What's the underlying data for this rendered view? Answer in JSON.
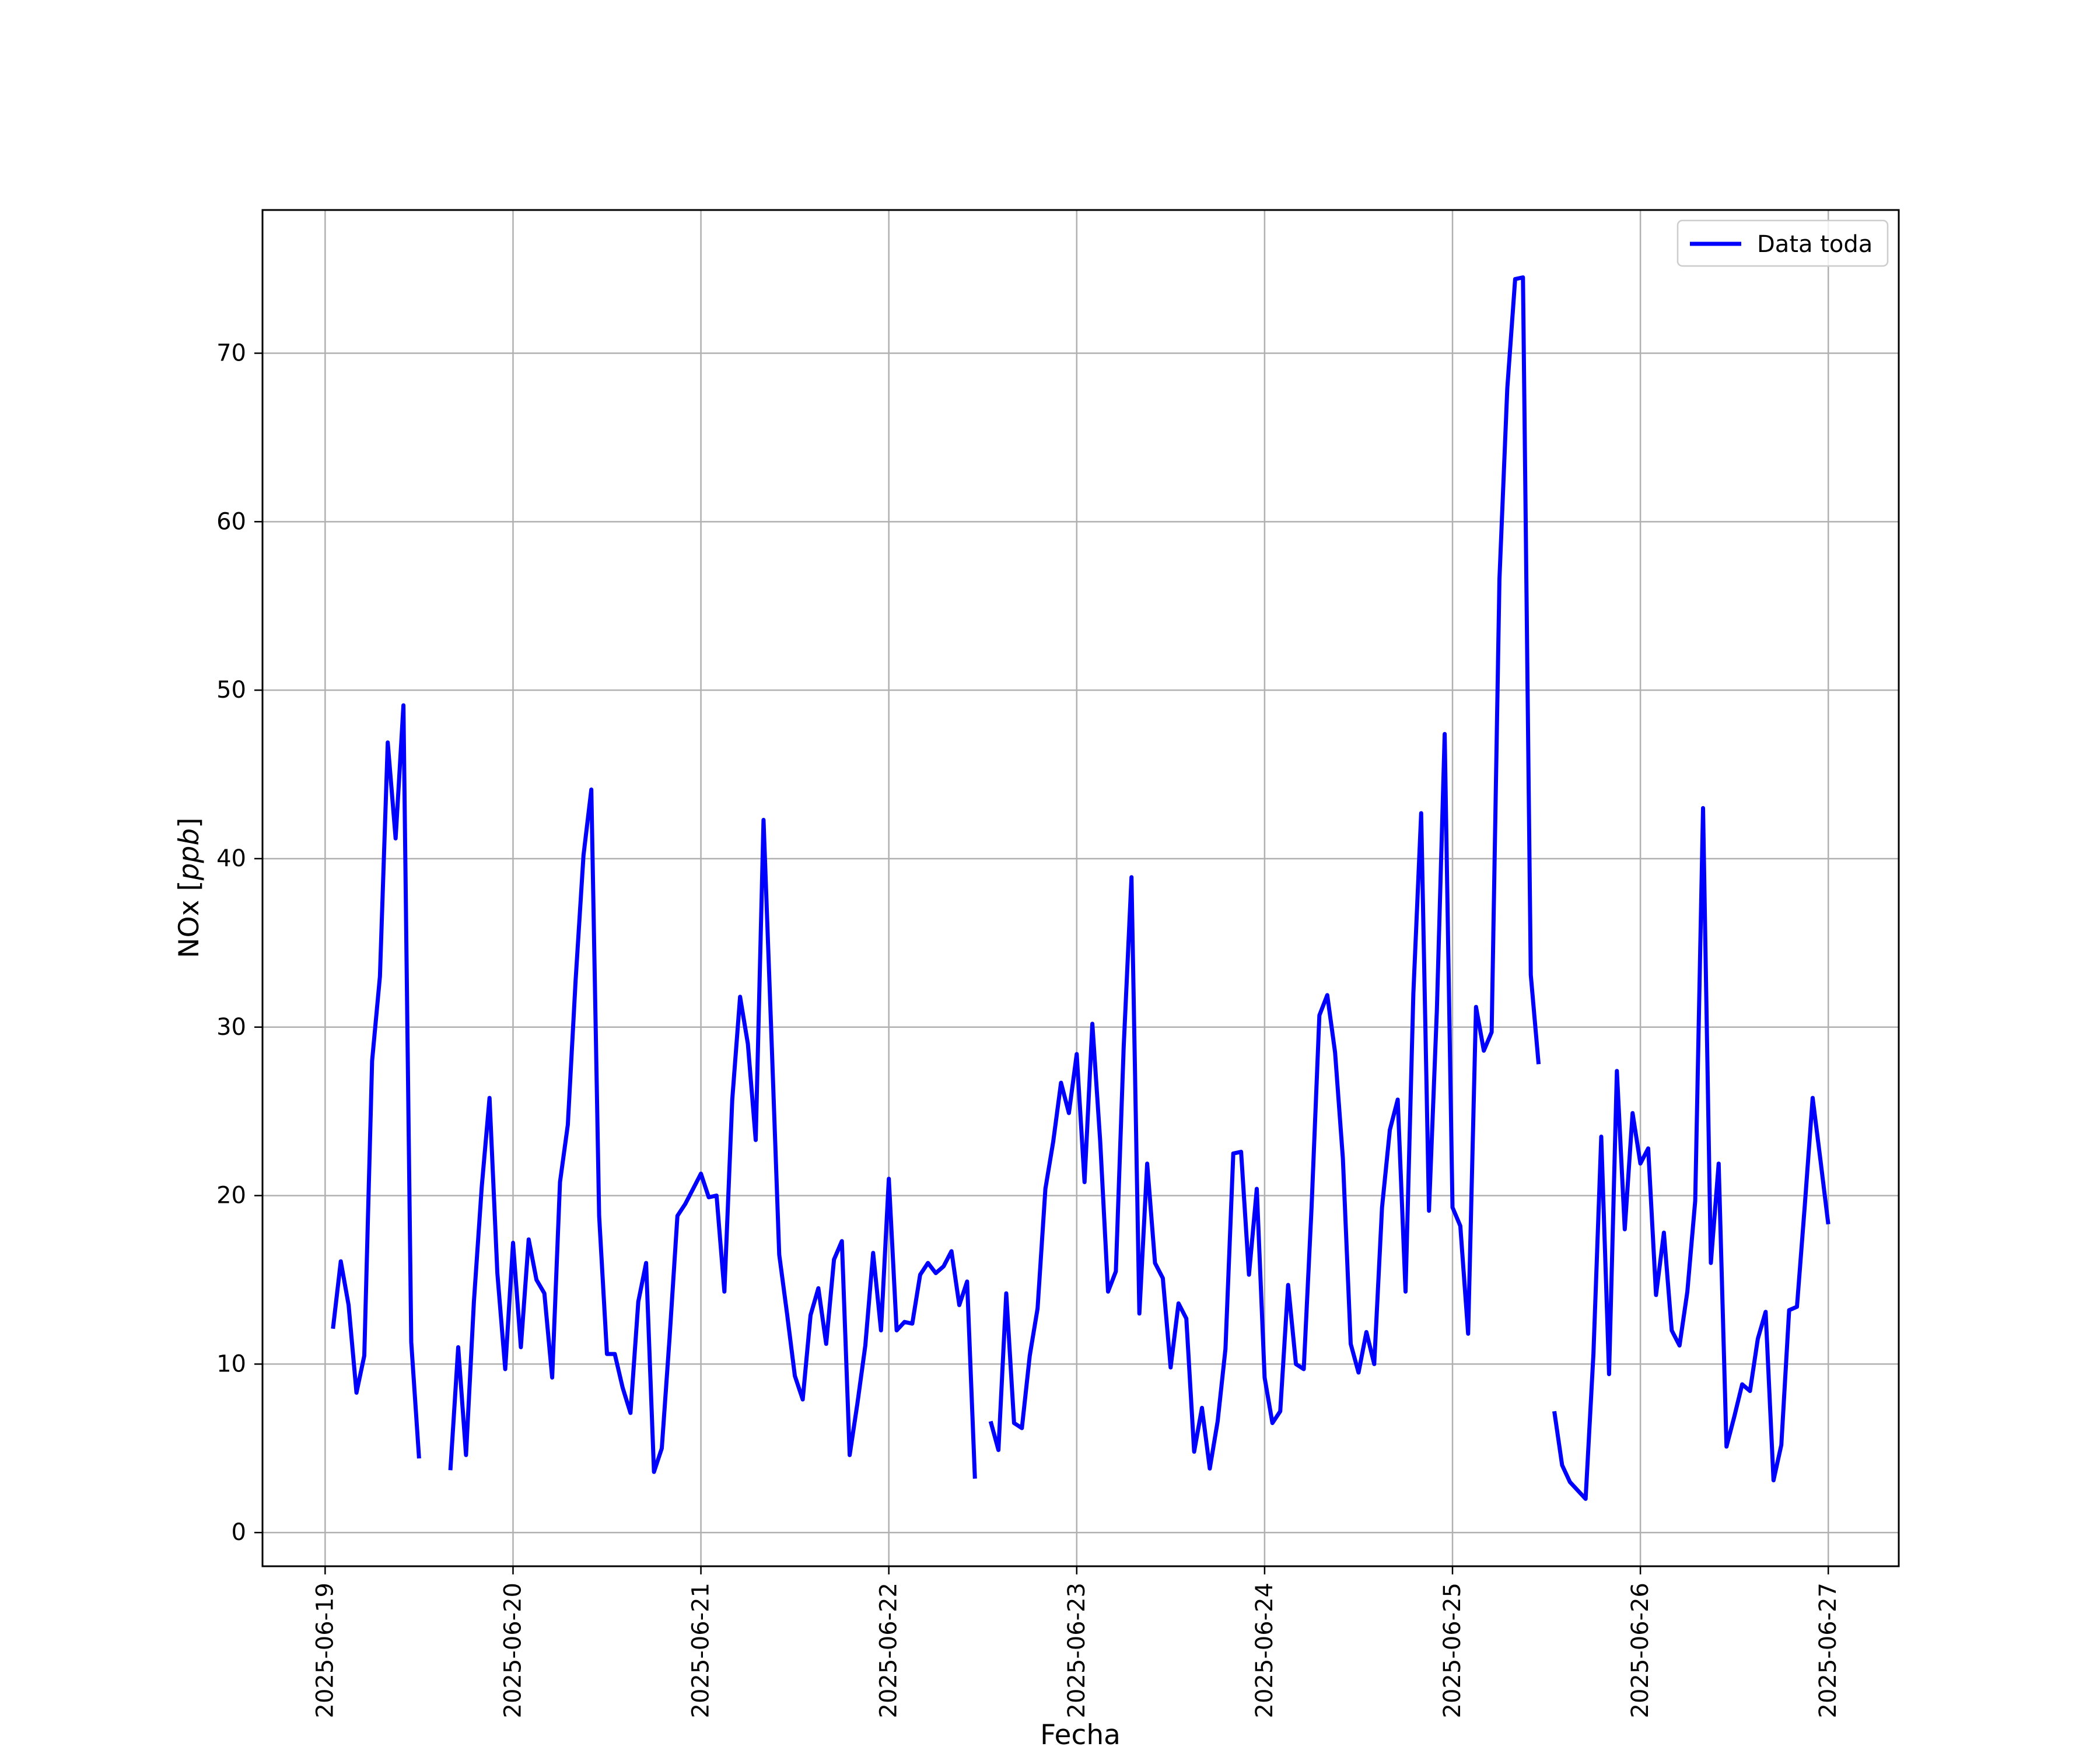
{
  "chart_data": {
    "type": "line",
    "title": "",
    "xlabel": "Fecha",
    "ylabel": "NOx [ppb]",
    "ylabel_main": "NOx ",
    "ylabel_unit": "ppb",
    "grid": true,
    "legend_placement": "top-right",
    "x_ticks": [
      "2025-06-19",
      "2025-06-20",
      "2025-06-21",
      "2025-06-22",
      "2025-06-23",
      "2025-06-24",
      "2025-06-25",
      "2025-06-26",
      "2025-06-27"
    ],
    "y_ticks": [
      0,
      10,
      20,
      30,
      40,
      50,
      60,
      70
    ],
    "xlim": [
      "2025-06-18T16:00",
      "2025-06-27T09:00"
    ],
    "ylim": [
      -2,
      78.5
    ],
    "series": [
      {
        "name": "Data toda",
        "color": "#0000ff",
        "points": [
          [
            "2025-06-19T01:00",
            12.1
          ],
          [
            "2025-06-19T02:00",
            16.1
          ],
          [
            "2025-06-19T03:00",
            13.5
          ],
          [
            "2025-06-19T04:00",
            8.3
          ],
          [
            "2025-06-19T05:00",
            10.5
          ],
          [
            "2025-06-19T06:00",
            28.0
          ],
          [
            "2025-06-19T07:00",
            33.0
          ],
          [
            "2025-06-19T08:00",
            46.9
          ],
          [
            "2025-06-19T09:00",
            41.2
          ],
          [
            "2025-06-19T10:00",
            49.1
          ],
          [
            "2025-06-19T11:00",
            11.3
          ],
          [
            "2025-06-19T12:00",
            4.4
          ],
          [
            "2025-06-19T13:00",
            null
          ],
          [
            "2025-06-19T14:00",
            null
          ],
          [
            "2025-06-19T15:00",
            null
          ],
          [
            "2025-06-19T16:00",
            3.7
          ],
          [
            "2025-06-19T17:00",
            11.0
          ],
          [
            "2025-06-19T18:00",
            4.6
          ],
          [
            "2025-06-19T19:00",
            13.7
          ],
          [
            "2025-06-19T20:00",
            20.5
          ],
          [
            "2025-06-19T21:00",
            25.8
          ],
          [
            "2025-06-19T22:00",
            15.4
          ],
          [
            "2025-06-19T23:00",
            9.7
          ],
          [
            "2025-06-20T00:00",
            17.2
          ],
          [
            "2025-06-20T01:00",
            11.0
          ],
          [
            "2025-06-20T02:00",
            17.4
          ],
          [
            "2025-06-20T03:00",
            15.0
          ],
          [
            "2025-06-20T04:00",
            14.2
          ],
          [
            "2025-06-20T05:00",
            9.2
          ],
          [
            "2025-06-20T06:00",
            20.8
          ],
          [
            "2025-06-20T07:00",
            24.2
          ],
          [
            "2025-06-20T08:00",
            32.8
          ],
          [
            "2025-06-20T09:00",
            40.2
          ],
          [
            "2025-06-20T10:00",
            44.1
          ],
          [
            "2025-06-20T11:00",
            18.8
          ],
          [
            "2025-06-20T12:00",
            10.6
          ],
          [
            "2025-06-20T13:00",
            10.6
          ],
          [
            "2025-06-20T14:00",
            8.6
          ],
          [
            "2025-06-20T15:00",
            7.1
          ],
          [
            "2025-06-20T16:00",
            13.7
          ],
          [
            "2025-06-20T17:00",
            16.0
          ],
          [
            "2025-06-20T18:00",
            3.6
          ],
          [
            "2025-06-20T19:00",
            5.0
          ],
          [
            "2025-06-20T20:00",
            11.6
          ],
          [
            "2025-06-20T21:00",
            18.8
          ],
          [
            "2025-06-20T22:00",
            19.5
          ],
          [
            "2025-06-20T23:00",
            20.4
          ],
          [
            "2025-06-21T00:00",
            21.3
          ],
          [
            "2025-06-21T01:00",
            19.9
          ],
          [
            "2025-06-21T02:00",
            20.0
          ],
          [
            "2025-06-21T03:00",
            14.3
          ],
          [
            "2025-06-21T04:00",
            25.7
          ],
          [
            "2025-06-21T05:00",
            31.8
          ],
          [
            "2025-06-21T06:00",
            29.0
          ],
          [
            "2025-06-21T07:00",
            23.3
          ],
          [
            "2025-06-21T08:00",
            42.3
          ],
          [
            "2025-06-21T09:00",
            29.5
          ],
          [
            "2025-06-21T10:00",
            16.5
          ],
          [
            "2025-06-21T11:00",
            13.0
          ],
          [
            "2025-06-21T12:00",
            9.3
          ],
          [
            "2025-06-21T13:00",
            7.9
          ],
          [
            "2025-06-21T14:00",
            12.9
          ],
          [
            "2025-06-21T15:00",
            14.5
          ],
          [
            "2025-06-21T16:00",
            11.2
          ],
          [
            "2025-06-21T17:00",
            16.2
          ],
          [
            "2025-06-21T18:00",
            17.3
          ],
          [
            "2025-06-21T19:00",
            4.6
          ],
          [
            "2025-06-21T20:00",
            7.7
          ],
          [
            "2025-06-21T21:00",
            11.1
          ],
          [
            "2025-06-21T22:00",
            16.6
          ],
          [
            "2025-06-21T23:00",
            12.0
          ],
          [
            "2025-06-22T00:00",
            21.0
          ],
          [
            "2025-06-22T01:00",
            12.0
          ],
          [
            "2025-06-22T02:00",
            12.5
          ],
          [
            "2025-06-22T03:00",
            12.4
          ],
          [
            "2025-06-22T04:00",
            15.3
          ],
          [
            "2025-06-22T05:00",
            16.0
          ],
          [
            "2025-06-22T06:00",
            15.4
          ],
          [
            "2025-06-22T07:00",
            15.8
          ],
          [
            "2025-06-22T08:00",
            16.7
          ],
          [
            "2025-06-22T09:00",
            13.5
          ],
          [
            "2025-06-22T10:00",
            14.9
          ],
          [
            "2025-06-22T11:00",
            3.2
          ],
          [
            "2025-06-22T12:00",
            null
          ],
          [
            "2025-06-22T13:00",
            6.6
          ],
          [
            "2025-06-22T14:00",
            4.9
          ],
          [
            "2025-06-22T15:00",
            14.2
          ],
          [
            "2025-06-22T16:00",
            6.5
          ],
          [
            "2025-06-22T17:00",
            6.2
          ],
          [
            "2025-06-22T18:00",
            10.5
          ],
          [
            "2025-06-22T19:00",
            13.3
          ],
          [
            "2025-06-22T20:00",
            20.4
          ],
          [
            "2025-06-22T21:00",
            23.2
          ],
          [
            "2025-06-22T22:00",
            26.7
          ],
          [
            "2025-06-22T23:00",
            24.9
          ],
          [
            "2025-06-23T00:00",
            28.4
          ],
          [
            "2025-06-23T01:00",
            20.8
          ],
          [
            "2025-06-23T02:00",
            30.2
          ],
          [
            "2025-06-23T03:00",
            23.2
          ],
          [
            "2025-06-23T04:00",
            14.3
          ],
          [
            "2025-06-23T05:00",
            15.5
          ],
          [
            "2025-06-23T06:00",
            28.8
          ],
          [
            "2025-06-23T07:00",
            38.9
          ],
          [
            "2025-06-23T08:00",
            13.0
          ],
          [
            "2025-06-23T09:00",
            21.9
          ],
          [
            "2025-06-23T10:00",
            16.0
          ],
          [
            "2025-06-23T11:00",
            15.1
          ],
          [
            "2025-06-23T12:00",
            9.8
          ],
          [
            "2025-06-23T13:00",
            13.6
          ],
          [
            "2025-06-23T14:00",
            12.7
          ],
          [
            "2025-06-23T15:00",
            4.8
          ],
          [
            "2025-06-23T16:00",
            7.4
          ],
          [
            "2025-06-23T17:00",
            3.8
          ],
          [
            "2025-06-23T18:00",
            6.6
          ],
          [
            "2025-06-23T19:00",
            10.9
          ],
          [
            "2025-06-23T20:00",
            22.5
          ],
          [
            "2025-06-23T21:00",
            22.6
          ],
          [
            "2025-06-23T22:00",
            15.3
          ],
          [
            "2025-06-23T23:00",
            20.4
          ],
          [
            "2025-06-24T00:00",
            9.2
          ],
          [
            "2025-06-24T01:00",
            6.5
          ],
          [
            "2025-06-24T02:00",
            7.2
          ],
          [
            "2025-06-24T03:00",
            14.7
          ],
          [
            "2025-06-24T04:00",
            10.0
          ],
          [
            "2025-06-24T05:00",
            9.7
          ],
          [
            "2025-06-24T06:00",
            19.3
          ],
          [
            "2025-06-24T07:00",
            30.7
          ],
          [
            "2025-06-24T08:00",
            31.9
          ],
          [
            "2025-06-24T09:00",
            28.5
          ],
          [
            "2025-06-24T10:00",
            22.2
          ],
          [
            "2025-06-24T11:00",
            11.2
          ],
          [
            "2025-06-24T12:00",
            9.5
          ],
          [
            "2025-06-24T13:00",
            11.9
          ],
          [
            "2025-06-24T14:00",
            10.0
          ],
          [
            "2025-06-24T15:00",
            19.3
          ],
          [
            "2025-06-24T16:00",
            23.9
          ],
          [
            "2025-06-24T17:00",
            25.7
          ],
          [
            "2025-06-24T18:00",
            14.3
          ],
          [
            "2025-06-24T19:00",
            32.0
          ],
          [
            "2025-06-24T20:00",
            42.7
          ],
          [
            "2025-06-24T21:00",
            19.1
          ],
          [
            "2025-06-24T22:00",
            31.0
          ],
          [
            "2025-06-24T23:00",
            47.4
          ],
          [
            "2025-06-25T00:00",
            19.3
          ],
          [
            "2025-06-25T01:00",
            18.2
          ],
          [
            "2025-06-25T02:00",
            11.8
          ],
          [
            "2025-06-25T03:00",
            31.2
          ],
          [
            "2025-06-25T04:00",
            28.6
          ],
          [
            "2025-06-25T05:00",
            29.7
          ],
          [
            "2025-06-25T06:00",
            56.6
          ],
          [
            "2025-06-25T07:00",
            67.9
          ],
          [
            "2025-06-25T08:00",
            74.4
          ],
          [
            "2025-06-25T09:00",
            74.5
          ],
          [
            "2025-06-25T10:00",
            33.1
          ],
          [
            "2025-06-25T11:00",
            27.8
          ],
          [
            "2025-06-25T12:00",
            null
          ],
          [
            "2025-06-25T13:00",
            7.2
          ],
          [
            "2025-06-25T14:00",
            4.0
          ],
          [
            "2025-06-25T15:00",
            3.0
          ],
          [
            "2025-06-25T16:00",
            2.5
          ],
          [
            "2025-06-25T17:00",
            2.0
          ],
          [
            "2025-06-25T18:00",
            10.6
          ],
          [
            "2025-06-25T19:00",
            23.5
          ],
          [
            "2025-06-25T20:00",
            9.4
          ],
          [
            "2025-06-25T21:00",
            27.4
          ],
          [
            "2025-06-25T22:00",
            18.0
          ],
          [
            "2025-06-25T23:00",
            24.9
          ],
          [
            "2025-06-26T00:00",
            21.9
          ],
          [
            "2025-06-26T01:00",
            22.8
          ],
          [
            "2025-06-26T02:00",
            14.1
          ],
          [
            "2025-06-26T03:00",
            17.8
          ],
          [
            "2025-06-26T04:00",
            12.0
          ],
          [
            "2025-06-26T05:00",
            11.1
          ],
          [
            "2025-06-26T06:00",
            14.3
          ],
          [
            "2025-06-26T07:00",
            19.7
          ],
          [
            "2025-06-26T08:00",
            43.0
          ],
          [
            "2025-06-26T09:00",
            16.0
          ],
          [
            "2025-06-26T10:00",
            21.9
          ],
          [
            "2025-06-26T11:00",
            5.1
          ],
          [
            "2025-06-26T12:00",
            6.9
          ],
          [
            "2025-06-26T13:00",
            8.8
          ],
          [
            "2025-06-26T14:00",
            8.4
          ],
          [
            "2025-06-26T15:00",
            11.5
          ],
          [
            "2025-06-26T16:00",
            13.1
          ],
          [
            "2025-06-26T17:00",
            3.1
          ],
          [
            "2025-06-26T18:00",
            5.2
          ],
          [
            "2025-06-26T19:00",
            13.2
          ],
          [
            "2025-06-26T20:00",
            13.4
          ],
          [
            "2025-06-26T21:00",
            19.4
          ],
          [
            "2025-06-26T22:00",
            25.8
          ],
          [
            "2025-06-26T23:00",
            22.1
          ],
          [
            "2025-06-27T00:00",
            18.3
          ]
        ]
      }
    ]
  }
}
